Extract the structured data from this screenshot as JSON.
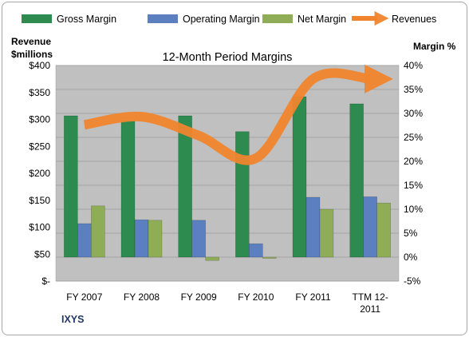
{
  "chart_data": {
    "type": "bar",
    "title": "12-Month Period Margins",
    "company": "IXYS",
    "y_left_label_line1": "Revenue",
    "y_left_label_line2": "$millions",
    "y_right_label": "Margin %",
    "categories": [
      "FY 2007",
      "FY 2008",
      "FY 2009",
      "FY 2010",
      "FY 2011",
      "TTM 12-2011"
    ],
    "category_label_lines": [
      [
        "FY 2007"
      ],
      [
        "FY 2008"
      ],
      [
        "FY 2009"
      ],
      [
        "FY 2010"
      ],
      [
        "FY 2011"
      ],
      [
        "TTM 12-",
        "2011"
      ]
    ],
    "ylim_left": [
      0,
      400
    ],
    "y_left_ticks": [
      0,
      50,
      100,
      150,
      200,
      250,
      300,
      350,
      400
    ],
    "y_left_tick_labels": [
      "$-",
      "$50",
      "$100",
      "$150",
      "$200",
      "$250",
      "$300",
      "$350",
      "$400"
    ],
    "ylim_right": [
      -5,
      40
    ],
    "y_right_ticks": [
      -5,
      0,
      5,
      10,
      15,
      20,
      25,
      30,
      35,
      40
    ],
    "y_right_tick_labels": [
      "-5%",
      "0%",
      "5%",
      "10%",
      "15%",
      "20%",
      "25%",
      "30%",
      "35%",
      "40%"
    ],
    "grid": true,
    "legend_position": "top",
    "series": [
      {
        "name": "Gross Margin",
        "kind": "bar",
        "axis": "right",
        "color": "#2e8b4f",
        "values": [
          29.5,
          28.5,
          29.5,
          26.2,
          33.5,
          32.0
        ]
      },
      {
        "name": "Operating Margin",
        "kind": "bar",
        "axis": "right",
        "color": "#5b7fbf",
        "values": [
          7.0,
          7.8,
          7.7,
          2.8,
          12.5,
          12.6
        ]
      },
      {
        "name": "Net Margin",
        "kind": "bar",
        "axis": "right",
        "color": "#8fad56",
        "values": [
          10.7,
          7.7,
          -0.7,
          -0.2,
          10.0,
          11.3
        ]
      },
      {
        "name": "Revenues",
        "kind": "line",
        "axis": "left",
        "color": "#f0852d",
        "values": [
          290,
          305,
          270,
          228,
          375,
          375
        ]
      }
    ]
  }
}
